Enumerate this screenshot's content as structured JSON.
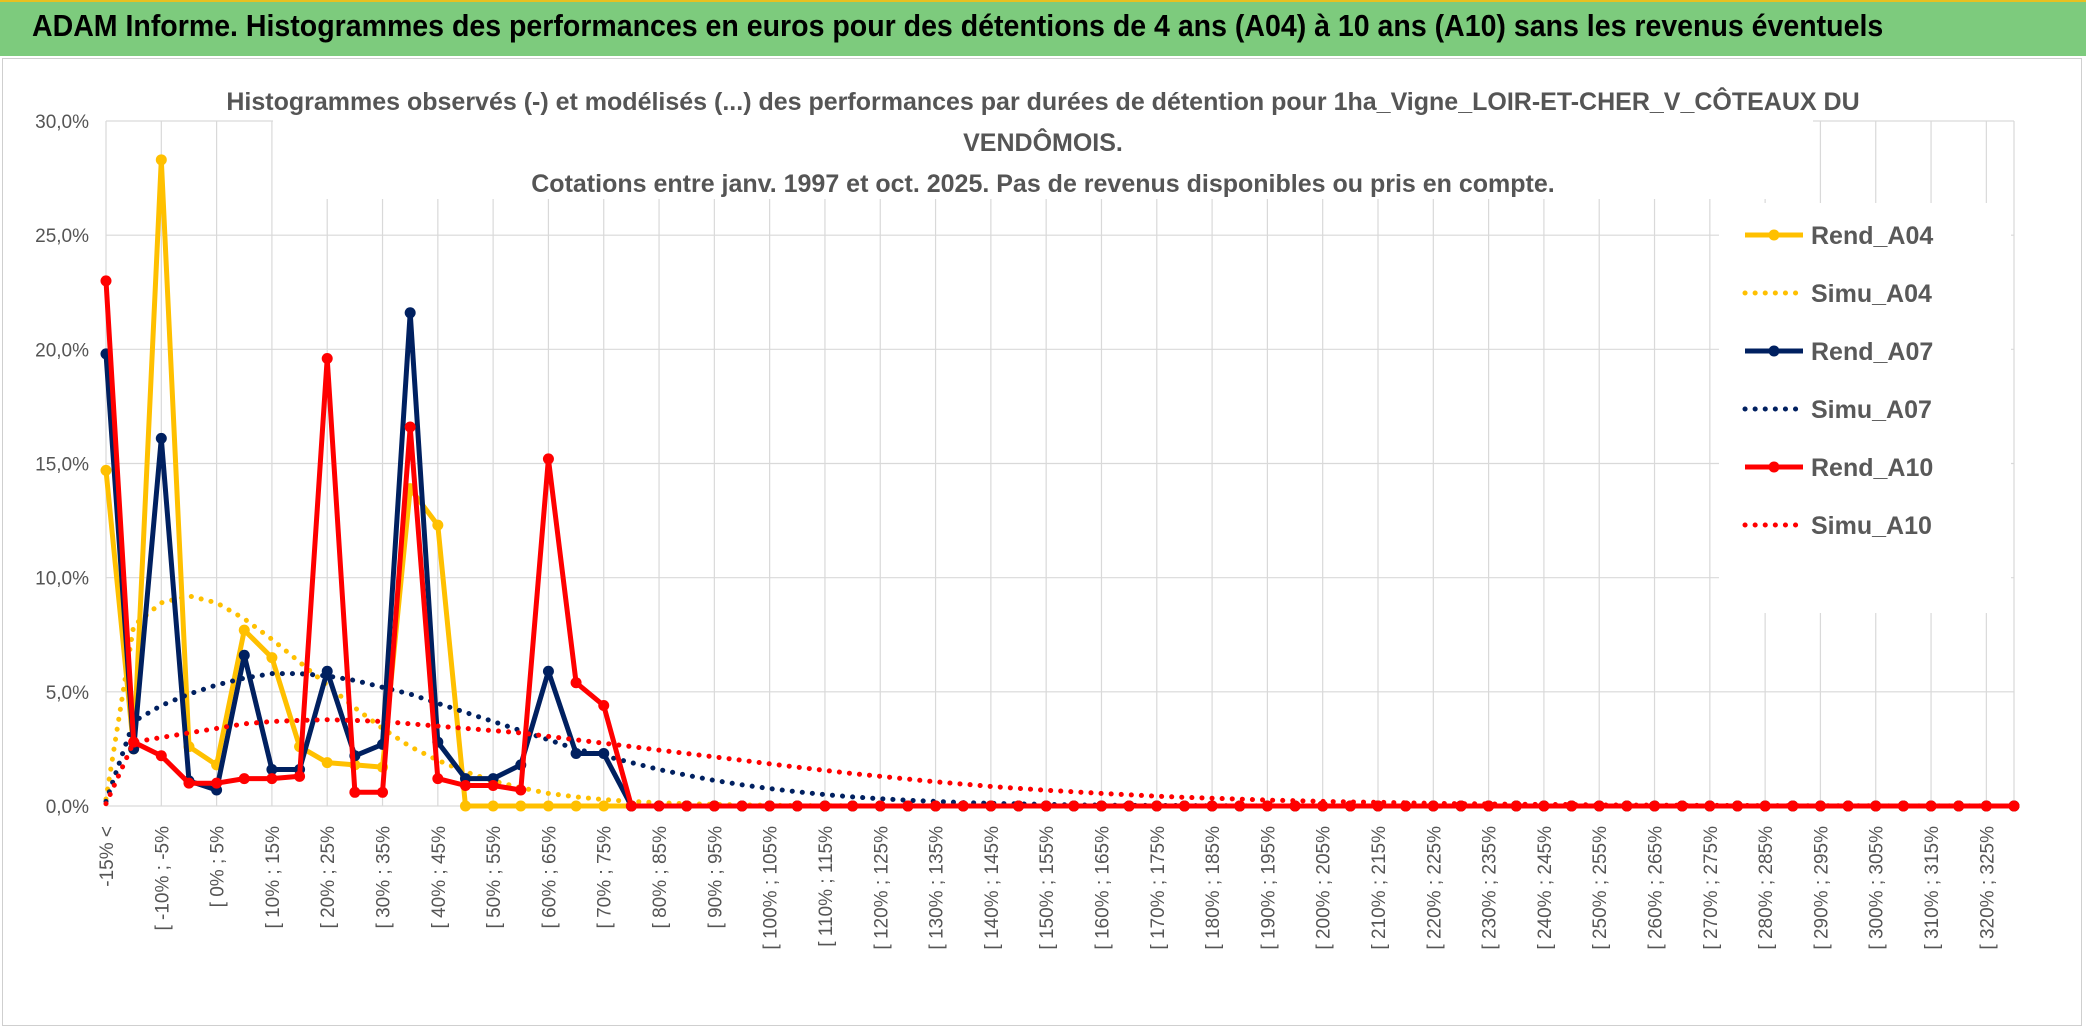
{
  "header": {
    "title": "ADAM Informe. Histogrammes des performances en euros pour des détentions de 4 ans (A04) à 10 ans (A10) sans les revenus éventuels"
  },
  "chart_data": {
    "type": "line",
    "title_lines": [
      "Histogrammes observés (-) et modélisés (...) des performances par durées de détention pour 1ha_Vigne_LOIR-ET-CHER_V_CÔTEAUX DU",
      "VENDÔMOIS.",
      "Cotations entre janv. 1997 et oct. 2025. Pas de revenus disponibles ou pris en compte."
    ],
    "ylim": [
      0,
      30
    ],
    "yticks": [
      "0,0%",
      "5,0%",
      "10,0%",
      "15,0%",
      "20,0%",
      "25,0%",
      "30,0%"
    ],
    "xtick_labels": [
      "-15% <",
      "[ -10% ; -5%",
      "[ 0% ; 5%",
      "[ 10% ; 15%",
      "[ 20% ; 25%",
      "[ 30% ; 35%",
      "[ 40% ; 45%",
      "[ 50% ; 55%",
      "[ 60% ; 65%",
      "[ 70% ; 75%",
      "[ 80% ; 85%",
      "[ 90% ; 95%",
      "[ 100% ; 105%",
      "[ 110% ; 115%",
      "[ 120% ; 125%",
      "[ 130% ; 135%",
      "[ 140% ; 145%",
      "[ 150% ; 155%",
      "[ 160% ; 165%",
      "[ 170% ; 175%",
      "[ 180% ; 185%",
      "[ 190% ; 195%",
      "[ 200% ; 205%",
      "[ 210% ; 215%",
      "[ 220% ; 225%",
      "[ 230% ; 235%",
      "[ 240% ; 245%",
      "[ 250% ; 255%",
      "[ 260% ; 265%",
      "[ 270% ; 275%",
      "[ 280% ; 285%",
      "[ 290% ; 295%",
      "[ 300% ; 305%",
      "[ 310% ; 315%",
      "[ 320% ; 325%"
    ],
    "n_points": 70,
    "legend": [
      "Rend_A04",
      "Simu_A04",
      "Rend_A07",
      "Simu_A07",
      "Rend_A10",
      "Simu_A10"
    ],
    "series": [
      {
        "name": "Rend_A04",
        "style": "solid",
        "color": "#ffc000",
        "values": [
          14.7,
          2.5,
          28.3,
          2.6,
          1.8,
          7.7,
          6.5,
          2.6,
          1.9,
          1.8,
          1.7,
          13.9,
          12.3,
          0,
          0,
          0,
          0,
          0,
          0,
          0,
          0,
          0,
          0,
          0,
          0,
          0,
          0,
          0,
          0,
          0,
          0,
          0,
          0,
          0,
          0,
          0,
          0,
          0,
          0,
          0,
          0,
          0,
          0,
          0,
          0,
          0,
          0,
          0,
          0,
          0,
          0,
          0,
          0,
          0,
          0,
          0,
          0,
          0,
          0,
          0,
          0,
          0,
          0,
          0,
          0,
          0,
          0,
          0,
          0,
          0
        ]
      },
      {
        "name": "Simu_A04",
        "style": "dotted",
        "color": "#ffc000",
        "values": [
          0.3,
          7.9,
          8.9,
          9.2,
          8.9,
          8.2,
          7.3,
          6.3,
          5.3,
          4.3,
          3.4,
          2.6,
          2.0,
          1.5,
          1.1,
          0.8,
          0.55,
          0.4,
          0.28,
          0.2,
          0.14,
          0.1,
          0.07,
          0.05,
          0.03,
          0.02,
          0.01,
          0.01,
          0,
          0,
          0,
          0,
          0,
          0,
          0,
          0,
          0,
          0,
          0,
          0,
          0,
          0,
          0,
          0,
          0,
          0,
          0,
          0,
          0,
          0,
          0,
          0,
          0,
          0,
          0,
          0,
          0,
          0,
          0,
          0,
          0,
          0,
          0,
          0,
          0,
          0,
          0,
          0,
          0,
          0
        ]
      },
      {
        "name": "Rend_A07",
        "style": "solid",
        "color": "#002060",
        "values": [
          19.8,
          2.5,
          16.1,
          1.1,
          0.7,
          6.6,
          1.6,
          1.6,
          5.9,
          2.2,
          2.7,
          21.6,
          2.8,
          1.2,
          1.2,
          1.8,
          5.9,
          2.3,
          2.3,
          0,
          0,
          0,
          0,
          0,
          0,
          0,
          0,
          0,
          0,
          0,
          0,
          0,
          0,
          0,
          0,
          0,
          0,
          0,
          0,
          0,
          0,
          0,
          0,
          0,
          0,
          0,
          0,
          0,
          0,
          0,
          0,
          0,
          0,
          0,
          0,
          0,
          0,
          0,
          0,
          0,
          0,
          0,
          0,
          0,
          0,
          0,
          0,
          0,
          0,
          0
        ]
      },
      {
        "name": "Simu_A07",
        "style": "dotted",
        "color": "#002060",
        "values": [
          0.2,
          3.7,
          4.4,
          4.9,
          5.3,
          5.6,
          5.8,
          5.8,
          5.7,
          5.5,
          5.2,
          4.9,
          4.5,
          4.1,
          3.7,
          3.3,
          2.9,
          2.5,
          2.2,
          1.9,
          1.6,
          1.35,
          1.12,
          0.93,
          0.76,
          0.62,
          0.5,
          0.4,
          0.32,
          0.25,
          0.2,
          0.15,
          0.12,
          0.09,
          0.07,
          0.05,
          0.04,
          0.03,
          0.02,
          0.02,
          0.01,
          0.01,
          0,
          0,
          0,
          0,
          0,
          0,
          0,
          0,
          0,
          0,
          0,
          0,
          0,
          0,
          0,
          0,
          0,
          0,
          0,
          0,
          0,
          0,
          0,
          0,
          0,
          0,
          0,
          0
        ]
      },
      {
        "name": "Rend_A10",
        "style": "solid",
        "color": "#ff0000",
        "values": [
          23.0,
          2.8,
          2.2,
          1.0,
          1.0,
          1.2,
          1.2,
          1.3,
          19.6,
          0.6,
          0.6,
          16.6,
          1.2,
          0.9,
          0.9,
          0.7,
          15.2,
          5.4,
          4.4,
          0,
          0,
          0,
          0,
          0,
          0,
          0,
          0,
          0,
          0,
          0,
          0,
          0,
          0,
          0,
          0,
          0,
          0,
          0,
          0,
          0,
          0,
          0,
          0,
          0,
          0,
          0,
          0,
          0,
          0,
          0,
          0,
          0,
          0,
          0,
          0,
          0,
          0,
          0,
          0,
          0,
          0,
          0,
          0,
          0,
          0,
          0,
          0,
          0,
          0,
          0
        ]
      },
      {
        "name": "Simu_A10",
        "style": "dotted",
        "color": "#ff0000",
        "values": [
          0.1,
          2.8,
          3.0,
          3.2,
          3.4,
          3.6,
          3.7,
          3.75,
          3.78,
          3.75,
          3.7,
          3.6,
          3.5,
          3.4,
          3.3,
          3.2,
          3.05,
          2.9,
          2.75,
          2.6,
          2.45,
          2.3,
          2.15,
          2.0,
          1.85,
          1.7,
          1.56,
          1.42,
          1.3,
          1.18,
          1.06,
          0.96,
          0.86,
          0.77,
          0.69,
          0.62,
          0.55,
          0.49,
          0.43,
          0.38,
          0.34,
          0.3,
          0.26,
          0.23,
          0.2,
          0.18,
          0.16,
          0.14,
          0.12,
          0.1,
          0.09,
          0.08,
          0.07,
          0.06,
          0.05,
          0.04,
          0.035,
          0.03,
          0.025,
          0.02,
          0.018,
          0.015,
          0.012,
          0.01,
          0.008,
          0.006,
          0.005,
          0.004,
          0.003,
          0.002
        ]
      }
    ]
  }
}
